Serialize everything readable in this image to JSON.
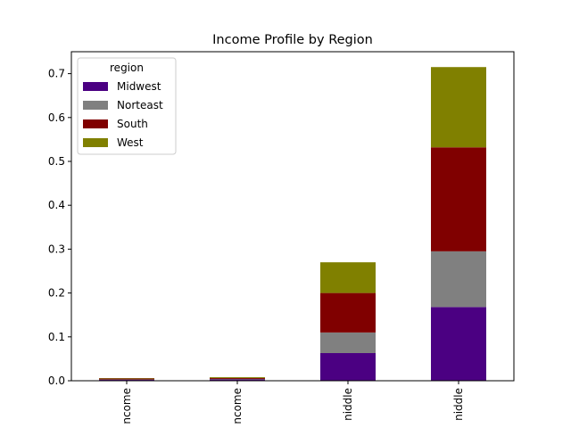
{
  "chart_data": {
    "type": "bar",
    "stacked": true,
    "title": "Income Profile by Region",
    "xlabel": "",
    "ylabel": "",
    "categories": [
      "ncome",
      "ncome",
      "niddle",
      "niddle"
    ],
    "series": [
      {
        "name": "Midwest",
        "color": "#4b0082",
        "values": [
          0.002,
          0.003,
          0.063,
          0.168
        ]
      },
      {
        "name": "Norteast",
        "color": "#808080",
        "values": [
          0.001,
          0.001,
          0.047,
          0.127
        ]
      },
      {
        "name": "South",
        "color": "#800000",
        "values": [
          0.002,
          0.002,
          0.09,
          0.237
        ]
      },
      {
        "name": "West",
        "color": "#808000",
        "values": [
          0.001,
          0.002,
          0.07,
          0.183
        ]
      }
    ],
    "ylim": [
      0,
      0.75
    ],
    "yticks": [
      "0.0",
      "0.1",
      "0.2",
      "0.3",
      "0.4",
      "0.5",
      "0.6",
      "0.7"
    ],
    "grid": false,
    "legend": {
      "title": "region",
      "position": "top-left"
    }
  }
}
